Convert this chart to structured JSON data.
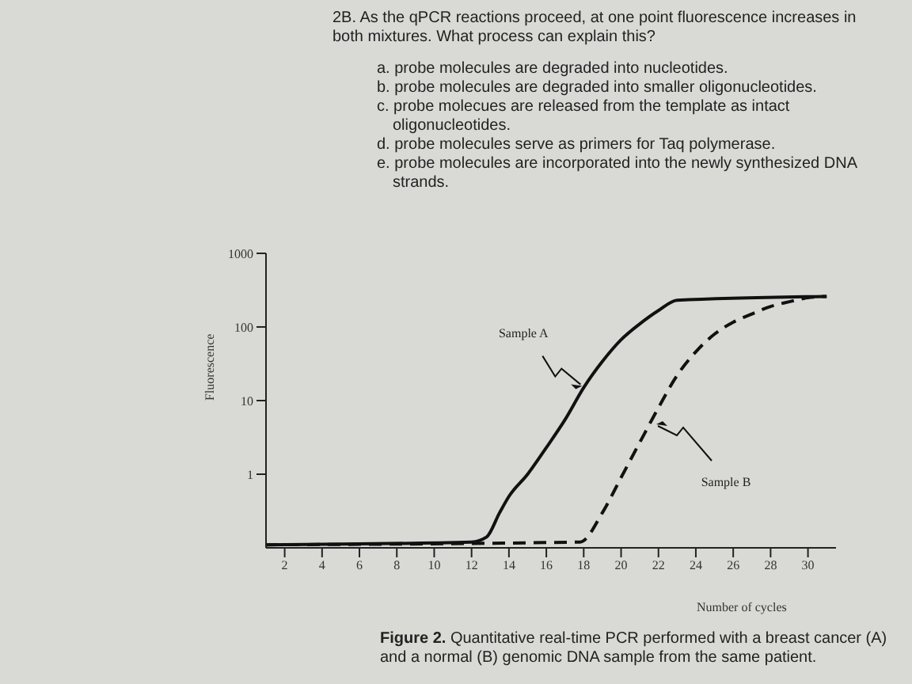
{
  "chart_data": {
    "type": "line",
    "title": "2B. As the qPCR reactions proceed, at one point fluorescence increases in both mixtures. What process can explain this?",
    "subtitle": "Figure 2. Quantitative real-time PCR performed with a breast cancer (A) and a normal (B) genomic DNA sample from the same patient.",
    "xlabel": "Number of cycles",
    "ylabel": "Fluorescence",
    "annotations": [
      "a. probe molecules are degraded into nucleotides.",
      "b. probe molecules are degraded into smaller oligonucleotides.",
      "c. probe molecues are released from the template as intact oligonucleotides.",
      "d. probe molecules serve as primers for Taq polymerase.",
      "e. probe molecules are incorporated into the newly synthesized DNA strands.",
      {
        "text": "Sample A",
        "x": 18,
        "y": 15
      },
      {
        "text": "Sample B",
        "x": 21.8,
        "y": 5
      }
    ],
    "series": [
      {
        "color": "#111111",
        "line_style": "solid",
        "x": [
          1,
          12,
          12.8,
          13.5,
          14,
          15,
          16,
          17,
          18,
          19,
          20,
          21,
          22,
          23,
          31
        ],
        "values": [
          0.11,
          0.12,
          0.14,
          0.3,
          0.5,
          1,
          2.3,
          5.5,
          15,
          34,
          67,
          110,
          167,
          230,
          260
        ]
      },
      {
        "color": "#111111",
        "line_style": "dashed",
        "x": [
          1,
          17.8,
          19,
          20,
          21,
          22,
          23,
          24,
          25,
          26,
          27,
          28,
          29,
          30,
          31
        ],
        "values": [
          0.11,
          0.12,
          0.3,
          0.9,
          2.7,
          8,
          22,
          46,
          80,
          116,
          150,
          190,
          220,
          250,
          260
        ]
      }
    ],
    "xlim": [
      1,
      31.5
    ],
    "xticks": [
      2,
      4,
      6,
      8,
      10,
      12,
      14,
      16,
      18,
      20,
      22,
      24,
      26,
      28,
      30
    ],
    "ylim": [
      0.1,
      1000
    ],
    "yticks": [
      1,
      10,
      100,
      1000
    ],
    "log": true,
    "grid": false,
    "marker": "none"
  }
}
